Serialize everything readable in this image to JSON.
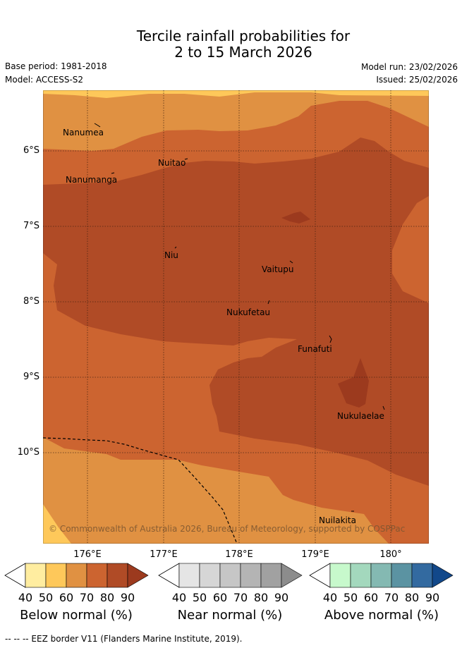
{
  "title": {
    "line1": "Tercile rainfall probabilities for",
    "line2": "2 to 15 March 2026"
  },
  "meta": {
    "base_period": "Base period: 1981-2018",
    "model": "Model: ACCESS-S2",
    "model_run": "Model run: 23/02/2026",
    "issued": "Issued: 25/02/2026"
  },
  "map": {
    "lat_labels": [
      "6°S",
      "7°S",
      "8°S",
      "9°S",
      "10°S"
    ],
    "lon_labels": [
      "176°E",
      "177°E",
      "178°E",
      "179°E",
      "180°"
    ],
    "places": [
      "Nanumea",
      "Nuitao",
      "Nanumanga",
      "Niu",
      "Vaitupu",
      "Nukufetau",
      "Funafuti",
      "Nukulaelae",
      "Nuilakita"
    ],
    "copyright": "© Commonwealth of Australia 2026, Bureau of Meteorology, supported by COSPPac"
  },
  "colorbars": [
    {
      "title": "Below normal (%)",
      "ticks": [
        "40",
        "50",
        "60",
        "70",
        "80",
        "90"
      ],
      "colors": [
        "#ffeda0",
        "#fec85a",
        "#e09142",
        "#cc6430",
        "#b04b26",
        "#9c3a1e"
      ]
    },
    {
      "title": "Near normal (%)",
      "ticks": [
        "40",
        "50",
        "60",
        "70",
        "80",
        "90"
      ],
      "colors": [
        "#e5e5e5",
        "#d6d6d6",
        "#c6c6c6",
        "#b4b4b4",
        "#a1a1a1",
        "#8c8c8c"
      ]
    },
    {
      "title": "Above normal (%)",
      "ticks": [
        "40",
        "50",
        "60",
        "70",
        "80",
        "90"
      ],
      "colors": [
        "#c7f9cc",
        "#a3d8bd",
        "#84b9b2",
        "#5b93a2",
        "#336aa0",
        "#12488a"
      ]
    }
  ],
  "footnote": "--  --  -- EEZ border V11 (Flanders Marine Institute, 2019).",
  "palette": {
    "land_bg": "#ffffff",
    "c40": "#fec85a",
    "c50": "#e09142",
    "c60": "#cc6430",
    "c70": "#b04b26",
    "c80": "#9c3a1e"
  }
}
